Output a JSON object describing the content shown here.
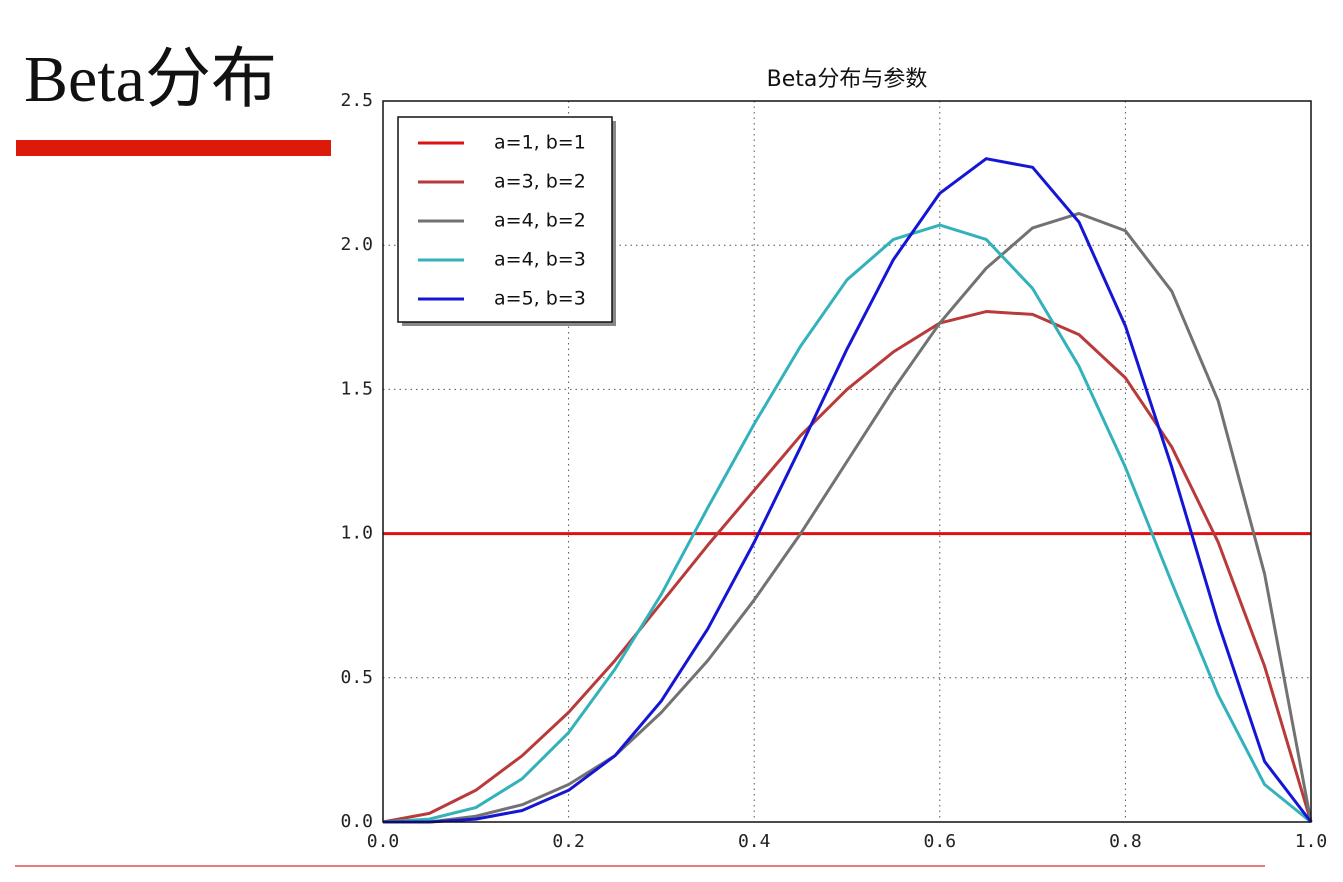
{
  "slide": {
    "title": "Beta分布"
  },
  "chart_data": {
    "type": "line",
    "title": "Beta分布与参数",
    "x": [
      0,
      0.05,
      0.1,
      0.15,
      0.2,
      0.25,
      0.3,
      0.35,
      0.4,
      0.45,
      0.5,
      0.55,
      0.6,
      0.65,
      0.7,
      0.75,
      0.8,
      0.85,
      0.9,
      0.95,
      1.0
    ],
    "series": [
      {
        "name": "a=1, b=1",
        "color": "#dd1111",
        "values": [
          1,
          1,
          1,
          1,
          1,
          1,
          1,
          1,
          1,
          1,
          1,
          1,
          1,
          1,
          1,
          1,
          1,
          1,
          1,
          1,
          1
        ]
      },
      {
        "name": "a=3, b=2",
        "color": "#b83a3a",
        "values": [
          0,
          0.03,
          0.11,
          0.23,
          0.38,
          0.56,
          0.76,
          0.96,
          1.15,
          1.34,
          1.5,
          1.63,
          1.73,
          1.77,
          1.76,
          1.69,
          1.54,
          1.3,
          0.97,
          0.54,
          0
        ]
      },
      {
        "name": "a=4, b=2",
        "color": "#727272",
        "values": [
          0,
          0,
          0.02,
          0.06,
          0.13,
          0.23,
          0.38,
          0.56,
          0.77,
          1.0,
          1.25,
          1.5,
          1.73,
          1.92,
          2.06,
          2.11,
          2.05,
          1.84,
          1.46,
          0.86,
          0
        ]
      },
      {
        "name": "a=4, b=3",
        "color": "#33b2bb",
        "values": [
          0,
          0.01,
          0.05,
          0.15,
          0.31,
          0.53,
          0.79,
          1.09,
          1.38,
          1.65,
          1.88,
          2.02,
          2.07,
          2.02,
          1.85,
          1.58,
          1.23,
          0.83,
          0.44,
          0.13,
          0
        ]
      },
      {
        "name": "a=5, b=3",
        "color": "#1515d5",
        "values": [
          0,
          0,
          0.01,
          0.04,
          0.11,
          0.23,
          0.42,
          0.67,
          0.97,
          1.3,
          1.64,
          1.95,
          2.18,
          2.3,
          2.27,
          2.08,
          1.72,
          1.23,
          0.69,
          0.21,
          0
        ]
      }
    ],
    "xlim": [
      0,
      1.0
    ],
    "ylim": [
      0,
      2.5
    ],
    "xticks": [
      {
        "value": 0,
        "label": "0.0"
      },
      0.2,
      0.4,
      0.6,
      0.8,
      {
        "value": 1,
        "label": "1.0"
      }
    ],
    "yticks": [
      {
        "value": 0,
        "label": "0.0"
      },
      0.5,
      {
        "value": 1,
        "label": "1.0"
      },
      1.5,
      {
        "value": 2,
        "label": "2.0"
      },
      2.5
    ],
    "grid": true,
    "legend": "upper left"
  }
}
